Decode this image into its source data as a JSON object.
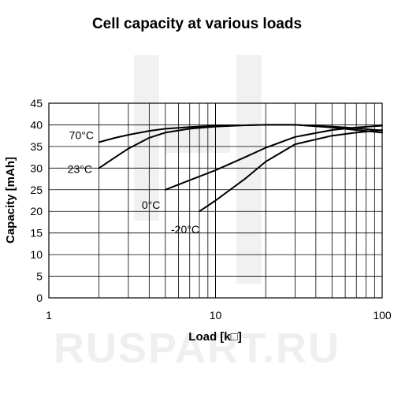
{
  "watermark": {
    "text": "RUSPART.RU",
    "color": "#efefef"
  },
  "chart_data": {
    "type": "line",
    "title": "Cell capacity at various loads",
    "xlabel": "Load [k□]",
    "ylabel": "Capacity [mAh]",
    "xscale": "log",
    "xlim": [
      1,
      100
    ],
    "ylim": [
      0,
      45
    ],
    "xticks": [
      1,
      10,
      100
    ],
    "xtick_labels": [
      "1",
      "10",
      "100"
    ],
    "yticks": [
      0,
      5,
      10,
      15,
      20,
      25,
      30,
      35,
      40,
      45
    ],
    "ytick_labels": [
      "0",
      "5",
      "10",
      "15",
      "20",
      "25",
      "30",
      "35",
      "40",
      "45"
    ],
    "grid": true,
    "legend": "none",
    "line_color": "#000000",
    "series": [
      {
        "label": "70°C",
        "x": [
          2,
          2.5,
          3,
          4,
          5,
          7,
          10,
          15,
          20,
          30,
          50,
          70,
          100
        ],
        "y": [
          36,
          37,
          37.7,
          38.6,
          39.1,
          39.5,
          39.8,
          39.9,
          40,
          40,
          39.4,
          38.8,
          38.2
        ]
      },
      {
        "label": "23°C",
        "x": [
          2,
          2.5,
          3,
          4,
          5,
          7,
          10,
          15,
          20,
          30,
          50,
          70,
          100
        ],
        "y": [
          30,
          32.5,
          34.5,
          37,
          38.2,
          39.1,
          39.6,
          39.9,
          40,
          40,
          39.6,
          39.2,
          38.7
        ]
      },
      {
        "label": "0°C",
        "x": [
          5,
          7,
          10,
          15,
          20,
          30,
          50,
          70,
          100
        ],
        "y": [
          25,
          27.2,
          29.5,
          32.5,
          34.7,
          37.2,
          38.8,
          39.4,
          39.8
        ]
      },
      {
        "label": "-20°C",
        "x": [
          8,
          10,
          15,
          20,
          30,
          50,
          70,
          100
        ],
        "y": [
          20,
          22.5,
          27.5,
          31.5,
          35.5,
          37.5,
          38.2,
          38.8
        ]
      }
    ]
  }
}
